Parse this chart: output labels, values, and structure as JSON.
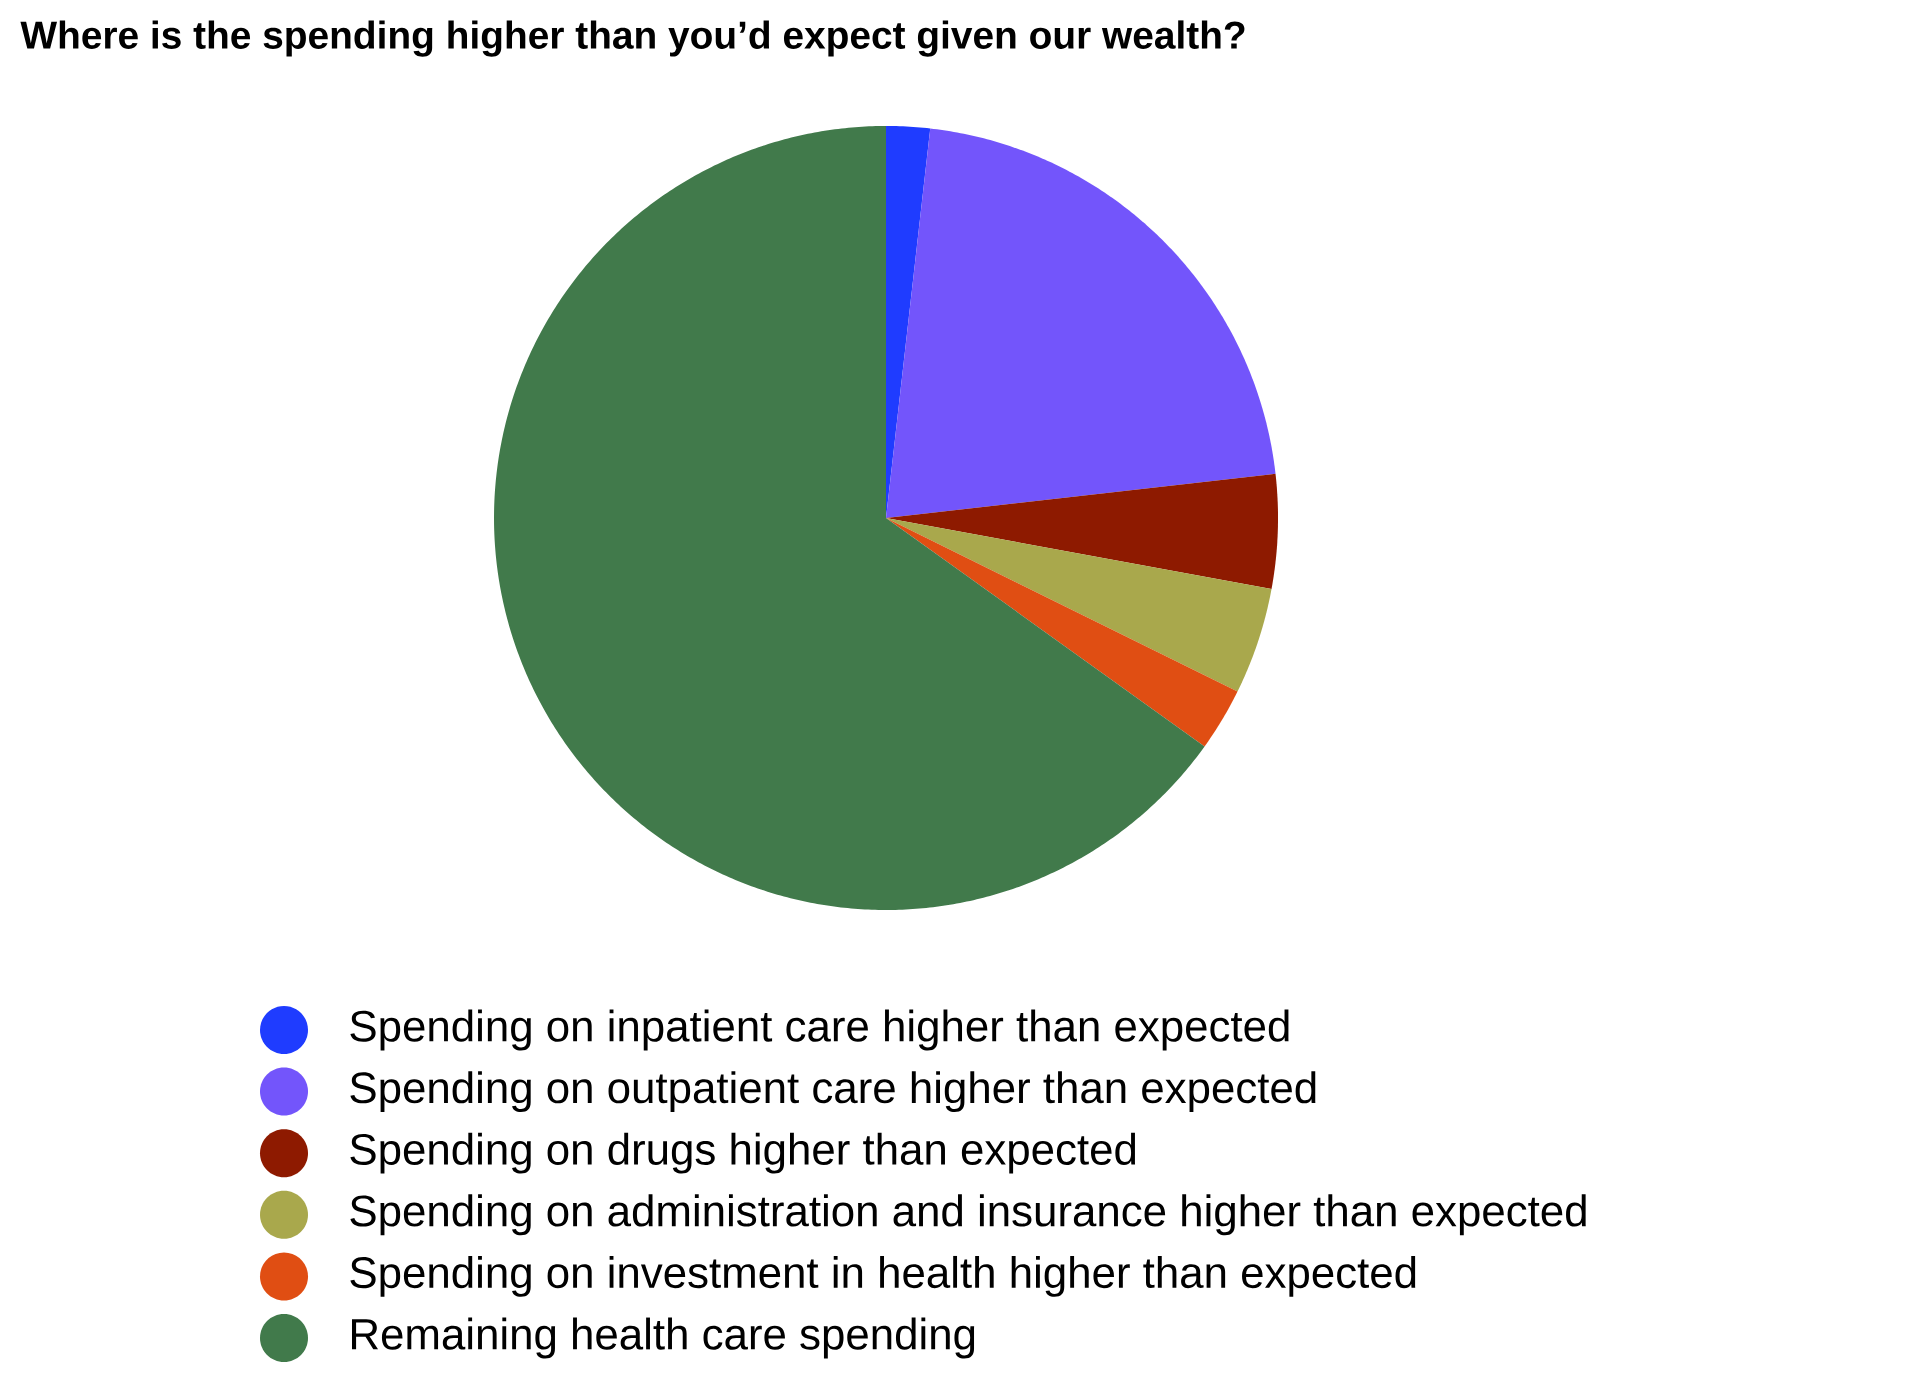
{
  "chart_data": {
    "type": "pie",
    "title": "Where is the spending higher than you’d expect given our wealth?",
    "categories": [
      "Spending on inpatient care higher than expected",
      "Spending on outpatient care higher than expected",
      "Spending on drugs higher than expected",
      "Spending on administration and insurance higher than expected",
      "Spending on investment in health higher than expected",
      "Remaining health care spending"
    ],
    "values": [
      1.8,
      21.4,
      4.7,
      4.4,
      2.6,
      65.1
    ],
    "colors": [
      "#1f3cff",
      "#7355fb",
      "#8e1a00",
      "#a9a84c",
      "#e04e13",
      "#417a4b"
    ],
    "legend": "bottom"
  }
}
